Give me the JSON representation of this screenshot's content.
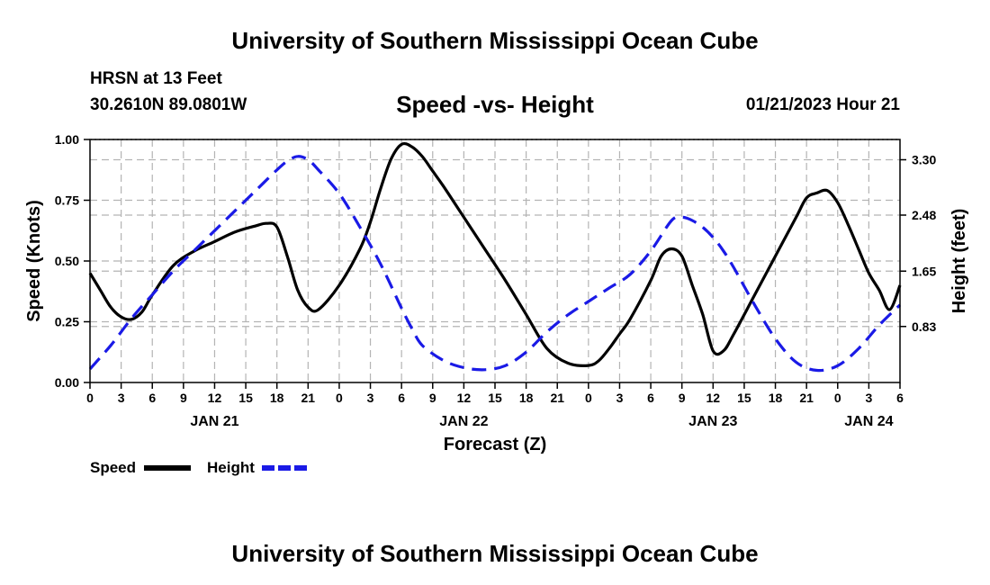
{
  "header": {
    "title": "University of Southern Mississippi Ocean Cube",
    "station": "HRSN at 13 Feet",
    "coords": "30.2610N  89.0801W",
    "subtitle": "Speed -vs- Height",
    "timestamp": "01/21/2023 Hour 21"
  },
  "footer": {
    "title": "University of Southern Mississippi Ocean Cube"
  },
  "chart_data": {
    "type": "line",
    "title": "Speed -vs- Height",
    "xlabel": "Forecast (Z)",
    "ylabel": "Speed (Knots)",
    "y2label": "Height (feet)",
    "xlim": [
      0,
      78
    ],
    "ylim": [
      0,
      1.0
    ],
    "y2lim": [
      0.0,
      3.6
    ],
    "x_ticks": [
      0,
      3,
      6,
      9,
      12,
      15,
      18,
      21,
      24,
      27,
      30,
      33,
      36,
      39,
      42,
      45,
      48,
      51,
      54,
      57,
      60,
      63,
      66,
      69,
      72,
      75,
      78
    ],
    "x_tick_labels": [
      "0",
      "3",
      "6",
      "9",
      "12",
      "15",
      "18",
      "21",
      "0",
      "3",
      "6",
      "9",
      "12",
      "15",
      "18",
      "21",
      "0",
      "3",
      "6",
      "9",
      "12",
      "15",
      "18",
      "21",
      "0",
      "3",
      "6"
    ],
    "date_labels": [
      {
        "x": 12,
        "label": "JAN 21"
      },
      {
        "x": 36,
        "label": "JAN 22"
      },
      {
        "x": 60,
        "label": "JAN 23"
      },
      {
        "x": 75,
        "label": "JAN 24"
      }
    ],
    "y_ticks": [
      0.0,
      0.25,
      0.5,
      0.75,
      1.0
    ],
    "y_tick_labels": [
      "0.00",
      "0.25",
      "0.50",
      "0.75",
      "1.00"
    ],
    "y2_ticks": [
      0.83,
      1.65,
      2.48,
      3.3
    ],
    "y2_tick_labels": [
      "0.83",
      "1.65",
      "2.48",
      "3.30"
    ],
    "grid": true,
    "legend_position": "bottom-left",
    "series": [
      {
        "name": "Speed",
        "axis": "left",
        "color": "#000000",
        "style": "solid",
        "x": [
          0,
          1,
          2,
          3,
          4,
          5,
          6,
          8,
          10,
          12,
          14,
          16,
          17,
          18,
          19,
          20,
          21,
          22,
          24,
          26,
          27,
          28,
          29,
          30,
          31,
          32,
          33,
          34,
          36,
          38,
          40,
          42,
          44,
          46,
          48,
          49,
          50,
          51,
          52,
          54,
          55,
          56,
          57,
          58,
          59,
          60,
          61,
          62,
          64,
          66,
          68,
          69,
          70,
          71,
          72,
          73,
          74,
          75,
          76,
          77,
          78
        ],
        "y": [
          0.45,
          0.38,
          0.31,
          0.27,
          0.26,
          0.29,
          0.36,
          0.48,
          0.54,
          0.58,
          0.62,
          0.645,
          0.655,
          0.64,
          0.52,
          0.38,
          0.31,
          0.3,
          0.4,
          0.55,
          0.66,
          0.8,
          0.92,
          0.98,
          0.97,
          0.93,
          0.87,
          0.81,
          0.68,
          0.55,
          0.42,
          0.28,
          0.14,
          0.08,
          0.07,
          0.09,
          0.14,
          0.2,
          0.26,
          0.42,
          0.52,
          0.55,
          0.52,
          0.4,
          0.28,
          0.13,
          0.13,
          0.2,
          0.36,
          0.52,
          0.68,
          0.76,
          0.78,
          0.79,
          0.74,
          0.65,
          0.55,
          0.45,
          0.38,
          0.3,
          0.4
        ]
      },
      {
        "name": "Height",
        "axis": "right",
        "color": "#1a1ae6",
        "style": "dashed",
        "x": [
          0,
          2,
          4,
          6,
          8,
          10,
          12,
          14,
          16,
          18,
          19,
          20,
          21,
          22,
          24,
          26,
          28,
          30,
          31,
          32,
          34,
          36,
          38,
          40,
          42,
          44,
          46,
          48,
          50,
          52,
          54,
          56,
          57,
          58,
          59,
          60,
          61,
          62,
          64,
          66,
          68,
          70,
          72,
          74,
          76,
          78
        ],
        "y": [
          0.2,
          0.55,
          0.95,
          1.3,
          1.65,
          1.95,
          2.25,
          2.55,
          2.85,
          3.15,
          3.28,
          3.35,
          3.3,
          3.15,
          2.8,
          2.3,
          1.75,
          1.1,
          0.8,
          0.55,
          0.33,
          0.22,
          0.19,
          0.25,
          0.45,
          0.75,
          1.0,
          1.2,
          1.4,
          1.6,
          1.95,
          2.4,
          2.45,
          2.4,
          2.3,
          2.15,
          1.95,
          1.7,
          1.15,
          0.65,
          0.3,
          0.18,
          0.25,
          0.5,
          0.85,
          1.15
        ]
      }
    ]
  }
}
